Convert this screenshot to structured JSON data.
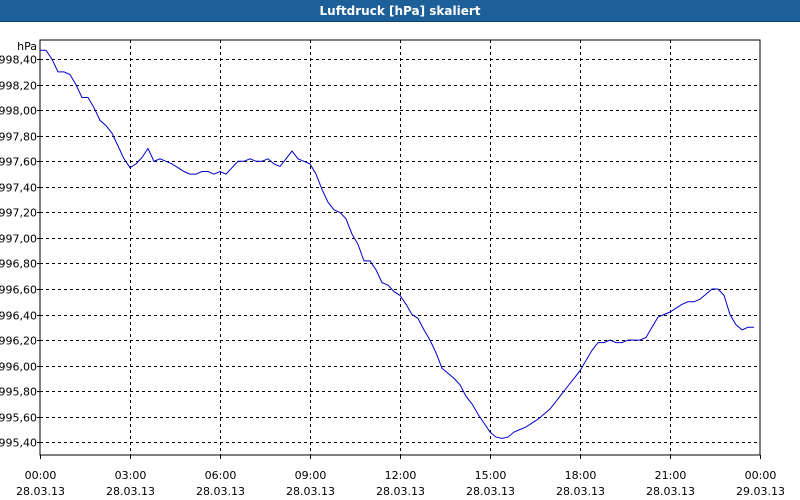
{
  "window": {
    "title": "Luftdruck [hPa] skaliert"
  },
  "colors": {
    "title_bar": "#1d5f98",
    "series": "#0000cc",
    "grid": "#000000",
    "background": "#ffffff"
  },
  "chart_data": {
    "type": "line",
    "title": "Luftdruck [hPa] skaliert",
    "ylabel": "hPa",
    "xlabel": "",
    "grid": true,
    "grid_style": "dashed",
    "ylim": [
      995.3,
      998.55
    ],
    "xlim": [
      "28.03.13 00:00",
      "29.03.13 00:00"
    ],
    "y_ticks": [
      {
        "value": 998.4,
        "label": "998,40"
      },
      {
        "value": 998.2,
        "label": "998,20"
      },
      {
        "value": 998.0,
        "label": "998,00"
      },
      {
        "value": 997.8,
        "label": "997,80"
      },
      {
        "value": 997.6,
        "label": "997,60"
      },
      {
        "value": 997.4,
        "label": "997,40"
      },
      {
        "value": 997.2,
        "label": "997,20"
      },
      {
        "value": 997.0,
        "label": "997,00"
      },
      {
        "value": 996.8,
        "label": "996,80"
      },
      {
        "value": 996.6,
        "label": "996,60"
      },
      {
        "value": 996.4,
        "label": "996,40"
      },
      {
        "value": 996.2,
        "label": "996,20"
      },
      {
        "value": 996.0,
        "label": "996,00"
      },
      {
        "value": 995.8,
        "label": "995,80"
      },
      {
        "value": 995.6,
        "label": "995,60"
      },
      {
        "value": 995.4,
        "label": "995,40"
      }
    ],
    "x_ticks": [
      {
        "hour": 0,
        "time": "00:00",
        "date": "28.03.13"
      },
      {
        "hour": 3,
        "time": "03:00",
        "date": "28.03.13"
      },
      {
        "hour": 6,
        "time": "06:00",
        "date": "28.03.13"
      },
      {
        "hour": 9,
        "time": "09:00",
        "date": "28.03.13"
      },
      {
        "hour": 12,
        "time": "12:00",
        "date": "28.03.13"
      },
      {
        "hour": 15,
        "time": "15:00",
        "date": "28.03.13"
      },
      {
        "hour": 18,
        "time": "18:00",
        "date": "28.03.13"
      },
      {
        "hour": 21,
        "time": "21:00",
        "date": "28.03.13"
      },
      {
        "hour": 24,
        "time": "00:00",
        "date": "29.03.13"
      }
    ],
    "series": [
      {
        "x": [
          0.0,
          0.2,
          0.4,
          0.6,
          0.8,
          1.0,
          1.2,
          1.4,
          1.6,
          1.8,
          2.0,
          2.2,
          2.4,
          2.6,
          2.8,
          3.0,
          3.2,
          3.4,
          3.6,
          3.8,
          4.0,
          4.2,
          4.4,
          4.6,
          4.8,
          5.0,
          5.2,
          5.4,
          5.6,
          5.8,
          6.0,
          6.2,
          6.4,
          6.6,
          6.8,
          7.0,
          7.2,
          7.4,
          7.6,
          7.8,
          8.0,
          8.2,
          8.4,
          8.6,
          8.8,
          9.0,
          9.2,
          9.4,
          9.6,
          9.8,
          10.0,
          10.2,
          10.4,
          10.6,
          10.8,
          11.0,
          11.2,
          11.4,
          11.6,
          11.8,
          12.0,
          12.2,
          12.4,
          12.6,
          12.8,
          13.0,
          13.2,
          13.4,
          13.6,
          13.8,
          14.0,
          14.2,
          14.4,
          14.6,
          14.8,
          15.0,
          15.2,
          15.4,
          15.6,
          15.8,
          16.0,
          16.2,
          16.4,
          16.6,
          16.8,
          17.0,
          17.2,
          17.4,
          17.6,
          17.8,
          18.0,
          18.2,
          18.4,
          18.6,
          18.8,
          19.0,
          19.2,
          19.4,
          19.6,
          19.8,
          20.0,
          20.2,
          20.4,
          20.6,
          20.8,
          21.0,
          21.2,
          21.4,
          21.6,
          21.8,
          22.0,
          22.2,
          22.4,
          22.6,
          22.8,
          23.0,
          23.2,
          23.4,
          23.6,
          23.8
        ],
        "y": [
          998.47,
          998.47,
          998.4,
          998.3,
          998.3,
          998.28,
          998.2,
          998.1,
          998.1,
          998.02,
          997.92,
          997.88,
          997.82,
          997.72,
          997.62,
          997.55,
          997.58,
          997.63,
          997.7,
          997.6,
          997.62,
          997.6,
          997.58,
          997.55,
          997.52,
          997.5,
          997.5,
          997.52,
          997.52,
          997.5,
          997.52,
          997.5,
          997.55,
          997.6,
          997.6,
          997.62,
          997.6,
          997.6,
          997.62,
          997.58,
          997.56,
          997.62,
          997.68,
          997.62,
          997.6,
          997.58,
          997.5,
          997.38,
          997.28,
          997.22,
          997.2,
          997.15,
          997.03,
          996.95,
          996.82,
          996.82,
          996.75,
          996.65,
          996.63,
          996.58,
          996.55,
          996.48,
          996.4,
          996.37,
          996.28,
          996.2,
          996.1,
          995.98,
          995.94,
          995.9,
          995.85,
          995.76,
          995.7,
          995.62,
          995.55,
          995.48,
          995.44,
          995.43,
          995.44,
          995.48,
          995.5,
          995.52,
          995.55,
          995.58,
          995.62,
          995.66,
          995.72,
          995.78,
          995.84,
          995.9,
          995.96,
          996.04,
          996.12,
          996.18,
          996.18,
          996.2,
          996.18,
          996.18,
          996.2,
          996.2,
          996.2,
          996.22,
          996.3,
          996.38,
          996.4,
          996.42,
          996.45,
          996.48,
          996.5,
          996.5,
          996.52,
          996.56,
          996.6,
          996.6,
          996.55,
          996.4,
          996.32,
          996.28,
          996.3,
          996.3
        ]
      }
    ]
  }
}
